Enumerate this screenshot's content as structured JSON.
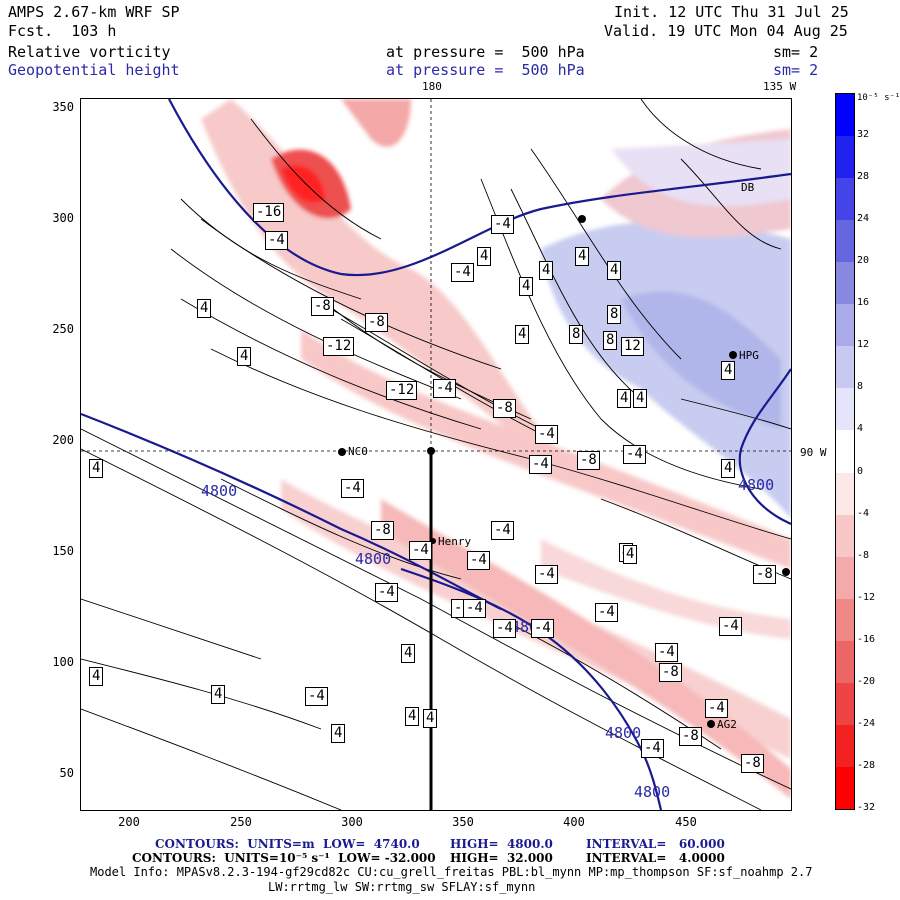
{
  "header": {
    "model": "AMPS 2.67-km WRF SP",
    "fcst": "Fcst.  103 h",
    "init": "Init. 12 UTC Thu 31 Jul 25",
    "valid": "Valid. 19 UTC Mon 04 Aug 25",
    "field1": "Relative vorticity",
    "field2": "Geopotential height",
    "pressure1": "at pressure =  500 hPa",
    "pressure2": "at pressure =  500 hPa",
    "sm1": "sm= 2",
    "sm2": "sm= 2",
    "lon_top_180": "180",
    "lon_top_135": "135 W",
    "lat_90": "90 W"
  },
  "axes": {
    "x_ticks": [
      "200",
      "250",
      "300",
      "350",
      "400",
      "450"
    ],
    "y_ticks": [
      "350",
      "300",
      "250",
      "200",
      "150",
      "100",
      "50"
    ]
  },
  "colorbar": {
    "unit": "10⁻⁵ s⁻¹",
    "ticks": [
      "32",
      "28",
      "24",
      "20",
      "16",
      "12",
      "8",
      "4",
      "0",
      "-4",
      "-8",
      "-12",
      "-16",
      "-20",
      "-24",
      "-28",
      "-32"
    ],
    "colors": [
      "#0000ff",
      "#2222f0",
      "#4444e8",
      "#6666e0",
      "#8888e0",
      "#aaaaea",
      "#c8c8f2",
      "#e4e4fa",
      "#ffffff",
      "#fde8e8",
      "#f8c8c8",
      "#f4aaaa",
      "#f08888",
      "#ec6666",
      "#ee4444",
      "#f22222",
      "#ff0000"
    ]
  },
  "stations": [
    {
      "name": "NCO"
    },
    {
      "name": "Henry"
    },
    {
      "name": "AG2"
    },
    {
      "name": "HPG"
    },
    {
      "name": "DB"
    }
  ],
  "height_labels": [
    "4800",
    "4800",
    "4800",
    "4800",
    "4800",
    "4800"
  ],
  "vort_labels": [
    "-16",
    "-4",
    "-12",
    "-4",
    "-4",
    "4",
    "4",
    "8",
    "8",
    "8",
    "12",
    "4",
    "-8",
    "-8",
    "-12",
    "-4",
    "-8",
    "-4",
    "-4",
    "-4",
    "-8",
    "-4",
    "-8",
    "-4",
    "-4",
    "-4",
    "-8",
    "-4",
    "-4",
    "-4",
    "-4",
    "-8",
    "-8",
    "-4",
    "-8",
    "-4",
    "-4",
    "-8",
    "4",
    "4",
    "4",
    "4",
    "4",
    "4",
    "4",
    "4",
    "4",
    "4",
    "4",
    "4",
    "4",
    "-4",
    "4",
    "4",
    "4",
    "4",
    "-4",
    "-4",
    "-4",
    "4",
    "4"
  ],
  "footer": {
    "line1_a": "CONTOURS:  UNITS=m  LOW=  4740.0",
    "line1_b": "HIGH=  4800.0",
    "line1_c": "INTERVAL=   60.000",
    "line2_a": "CONTOURS:  UNITS=10⁻⁵ s⁻¹  LOW= -32.000",
    "line2_b": "HIGH=  32.000",
    "line2_c": "INTERVAL=   4.0000",
    "model_info": "Model Info: MPASv8.2.3-194-gf29cd82c CU:cu_grell_freitas PBL:bl_mynn MP:mp_thompson SF:sf_noahmp 2.7",
    "model_info2": "LW:rrtmg_lw SW:rrtmg_sw SFLAY:sf_mynn"
  }
}
